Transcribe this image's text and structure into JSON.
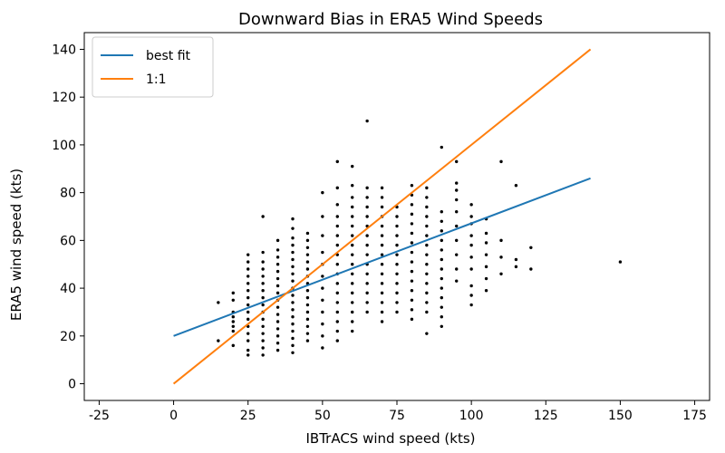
{
  "chart_data": {
    "type": "scatter",
    "title": "Downward Bias in ERA5 Wind Speeds",
    "xlabel": "IBTrACS wind speed (kts)",
    "ylabel": "ERA5 wind speed (kts)",
    "xlim": [
      -30,
      180
    ],
    "ylim": [
      -7,
      147
    ],
    "xticks": [
      -25,
      0,
      25,
      50,
      75,
      100,
      125,
      150,
      175
    ],
    "yticks": [
      0,
      20,
      40,
      60,
      80,
      100,
      120,
      140
    ],
    "grid": false,
    "legend_position": "top-left",
    "series": [
      {
        "name": "best fit",
        "kind": "line",
        "color": "#1f77b4",
        "points": [
          [
            0,
            20
          ],
          [
            140,
            86
          ]
        ]
      },
      {
        "name": "1:1",
        "kind": "line",
        "color": "#ff7f0e",
        "points": [
          [
            0,
            0
          ],
          [
            140,
            140
          ]
        ]
      },
      {
        "kind": "scatter",
        "color": "#000000",
        "points": [
          [
            15,
            18
          ],
          [
            15,
            34
          ],
          [
            20,
            16
          ],
          [
            20,
            22
          ],
          [
            20,
            26
          ],
          [
            20,
            30
          ],
          [
            20,
            35
          ],
          [
            20,
            38
          ],
          [
            20,
            24
          ],
          [
            20,
            28
          ],
          [
            25,
            12
          ],
          [
            25,
            14
          ],
          [
            25,
            18
          ],
          [
            25,
            21
          ],
          [
            25,
            24
          ],
          [
            25,
            27
          ],
          [
            25,
            30
          ],
          [
            25,
            33
          ],
          [
            25,
            36
          ],
          [
            25,
            39
          ],
          [
            25,
            42
          ],
          [
            25,
            45
          ],
          [
            25,
            48
          ],
          [
            25,
            51
          ],
          [
            25,
            54
          ],
          [
            30,
            12
          ],
          [
            30,
            15
          ],
          [
            30,
            18
          ],
          [
            30,
            21
          ],
          [
            30,
            24
          ],
          [
            30,
            27
          ],
          [
            30,
            30
          ],
          [
            30,
            33
          ],
          [
            30,
            36
          ],
          [
            30,
            39
          ],
          [
            30,
            42
          ],
          [
            30,
            45
          ],
          [
            30,
            48
          ],
          [
            30,
            51
          ],
          [
            30,
            55
          ],
          [
            30,
            70
          ],
          [
            35,
            14
          ],
          [
            35,
            17
          ],
          [
            35,
            20
          ],
          [
            35,
            23
          ],
          [
            35,
            26
          ],
          [
            35,
            29
          ],
          [
            35,
            32
          ],
          [
            35,
            35
          ],
          [
            35,
            38
          ],
          [
            35,
            41
          ],
          [
            35,
            44
          ],
          [
            35,
            47
          ],
          [
            35,
            50
          ],
          [
            35,
            53
          ],
          [
            35,
            56
          ],
          [
            35,
            60
          ],
          [
            40,
            13
          ],
          [
            40,
            16
          ],
          [
            40,
            19
          ],
          [
            40,
            22
          ],
          [
            40,
            25
          ],
          [
            40,
            28
          ],
          [
            40,
            31
          ],
          [
            40,
            34
          ],
          [
            40,
            37
          ],
          [
            40,
            40
          ],
          [
            40,
            43
          ],
          [
            40,
            46
          ],
          [
            40,
            49
          ],
          [
            40,
            52
          ],
          [
            40,
            55
          ],
          [
            40,
            58
          ],
          [
            40,
            61
          ],
          [
            40,
            65
          ],
          [
            40,
            69
          ],
          [
            45,
            18
          ],
          [
            45,
            21
          ],
          [
            45,
            24
          ],
          [
            45,
            27
          ],
          [
            45,
            30
          ],
          [
            45,
            33
          ],
          [
            45,
            36
          ],
          [
            45,
            39
          ],
          [
            45,
            42
          ],
          [
            45,
            45
          ],
          [
            45,
            48
          ],
          [
            45,
            51
          ],
          [
            45,
            54
          ],
          [
            45,
            57
          ],
          [
            45,
            60
          ],
          [
            45,
            63
          ],
          [
            50,
            15
          ],
          [
            50,
            20
          ],
          [
            50,
            25
          ],
          [
            50,
            30
          ],
          [
            50,
            35
          ],
          [
            50,
            40
          ],
          [
            50,
            45
          ],
          [
            50,
            50
          ],
          [
            50,
            55
          ],
          [
            50,
            62
          ],
          [
            50,
            70
          ],
          [
            50,
            80
          ],
          [
            55,
            18
          ],
          [
            55,
            22
          ],
          [
            55,
            26
          ],
          [
            55,
            30
          ],
          [
            55,
            34
          ],
          [
            55,
            38
          ],
          [
            55,
            42
          ],
          [
            55,
            46
          ],
          [
            55,
            50
          ],
          [
            55,
            54
          ],
          [
            55,
            58
          ],
          [
            55,
            62
          ],
          [
            55,
            66
          ],
          [
            55,
            70
          ],
          [
            55,
            75
          ],
          [
            55,
            82
          ],
          [
            55,
            93
          ],
          [
            60,
            22
          ],
          [
            60,
            26
          ],
          [
            60,
            30
          ],
          [
            60,
            34
          ],
          [
            60,
            38
          ],
          [
            60,
            42
          ],
          [
            60,
            46
          ],
          [
            60,
            50
          ],
          [
            60,
            54
          ],
          [
            60,
            58
          ],
          [
            60,
            62
          ],
          [
            60,
            66
          ],
          [
            60,
            70
          ],
          [
            60,
            74
          ],
          [
            60,
            78
          ],
          [
            60,
            83
          ],
          [
            60,
            91
          ],
          [
            65,
            30
          ],
          [
            65,
            34
          ],
          [
            65,
            38
          ],
          [
            65,
            42
          ],
          [
            65,
            46
          ],
          [
            65,
            50
          ],
          [
            65,
            54
          ],
          [
            65,
            58
          ],
          [
            65,
            62
          ],
          [
            65,
            66
          ],
          [
            65,
            70
          ],
          [
            65,
            74
          ],
          [
            65,
            78
          ],
          [
            65,
            82
          ],
          [
            65,
            110
          ],
          [
            70,
            26
          ],
          [
            70,
            30
          ],
          [
            70,
            34
          ],
          [
            70,
            38
          ],
          [
            70,
            42
          ],
          [
            70,
            46
          ],
          [
            70,
            50
          ],
          [
            70,
            54
          ],
          [
            70,
            58
          ],
          [
            70,
            62
          ],
          [
            70,
            66
          ],
          [
            70,
            70
          ],
          [
            70,
            74
          ],
          [
            70,
            78
          ],
          [
            70,
            82
          ],
          [
            75,
            30
          ],
          [
            75,
            34
          ],
          [
            75,
            38
          ],
          [
            75,
            42
          ],
          [
            75,
            46
          ],
          [
            75,
            50
          ],
          [
            75,
            54
          ],
          [
            75,
            58
          ],
          [
            75,
            62
          ],
          [
            75,
            66
          ],
          [
            75,
            70
          ],
          [
            75,
            74
          ],
          [
            80,
            27
          ],
          [
            80,
            31
          ],
          [
            80,
            35
          ],
          [
            80,
            39
          ],
          [
            80,
            43
          ],
          [
            80,
            47
          ],
          [
            80,
            51
          ],
          [
            80,
            55
          ],
          [
            80,
            59
          ],
          [
            80,
            63
          ],
          [
            80,
            67
          ],
          [
            80,
            71
          ],
          [
            80,
            75
          ],
          [
            80,
            79
          ],
          [
            80,
            83
          ],
          [
            85,
            21
          ],
          [
            85,
            30
          ],
          [
            85,
            34
          ],
          [
            85,
            38
          ],
          [
            85,
            42
          ],
          [
            85,
            46
          ],
          [
            85,
            50
          ],
          [
            85,
            54
          ],
          [
            85,
            58
          ],
          [
            85,
            62
          ],
          [
            85,
            66
          ],
          [
            85,
            70
          ],
          [
            85,
            74
          ],
          [
            85,
            78
          ],
          [
            85,
            82
          ],
          [
            90,
            24
          ],
          [
            90,
            28
          ],
          [
            90,
            32
          ],
          [
            90,
            36
          ],
          [
            90,
            40
          ],
          [
            90,
            44
          ],
          [
            90,
            48
          ],
          [
            90,
            52
          ],
          [
            90,
            56
          ],
          [
            90,
            60
          ],
          [
            90,
            64
          ],
          [
            90,
            68
          ],
          [
            90,
            72
          ],
          [
            90,
            99
          ],
          [
            95,
            43
          ],
          [
            95,
            48
          ],
          [
            95,
            54
          ],
          [
            95,
            60
          ],
          [
            95,
            66
          ],
          [
            95,
            72
          ],
          [
            95,
            77
          ],
          [
            95,
            81
          ],
          [
            95,
            84
          ],
          [
            95,
            93
          ],
          [
            100,
            33
          ],
          [
            100,
            37
          ],
          [
            100,
            41
          ],
          [
            100,
            48
          ],
          [
            100,
            53
          ],
          [
            100,
            58
          ],
          [
            100,
            62
          ],
          [
            100,
            67
          ],
          [
            100,
            70
          ],
          [
            100,
            75
          ],
          [
            105,
            39
          ],
          [
            105,
            44
          ],
          [
            105,
            49
          ],
          [
            105,
            54
          ],
          [
            105,
            59
          ],
          [
            105,
            63
          ],
          [
            105,
            69
          ],
          [
            110,
            46
          ],
          [
            110,
            53
          ],
          [
            110,
            60
          ],
          [
            110,
            93
          ],
          [
            115,
            49
          ],
          [
            115,
            52
          ],
          [
            115,
            83
          ],
          [
            120,
            48
          ],
          [
            120,
            57
          ],
          [
            150,
            51
          ]
        ]
      }
    ]
  }
}
